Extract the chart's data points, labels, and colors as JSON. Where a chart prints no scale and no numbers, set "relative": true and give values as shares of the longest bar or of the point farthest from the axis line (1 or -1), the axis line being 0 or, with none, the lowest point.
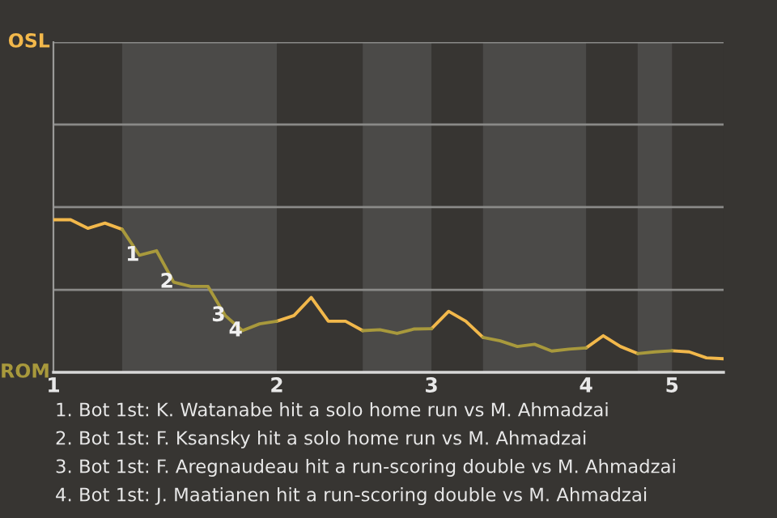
{
  "chart_data": {
    "type": "line",
    "relative": true,
    "categories": [
      "1",
      null,
      null,
      null,
      null,
      null,
      null,
      null,
      null,
      null,
      null,
      null,
      null,
      "2",
      null,
      null,
      null,
      null,
      null,
      null,
      null,
      null,
      "3",
      null,
      null,
      null,
      null,
      null,
      null,
      null,
      null,
      "4",
      null,
      null,
      null,
      null,
      "5",
      null,
      null,
      null
    ],
    "series": [
      {
        "name": "OSL",
        "color": "#f2b84b",
        "values": [
          1,
          1,
          0.944,
          0.978,
          0.937,
          null,
          null,
          null,
          null,
          null,
          null,
          null,
          null,
          0.335,
          0.372,
          0.491,
          0.335,
          0.335,
          0.273,
          null,
          null,
          null,
          0.286,
          0.4,
          0.335,
          0.229,
          null,
          null,
          null,
          null,
          null,
          0.16,
          0.24,
          0.169,
          0.123,
          null,
          0.141,
          0.134,
          0.095,
          0.089
        ]
      },
      {
        "name": "ROM",
        "color": "#a8993c",
        "values": [
          null,
          null,
          null,
          null,
          0.937,
          0.768,
          0.797,
          0.591,
          0.563,
          0.563,
          0.372,
          0.273,
          0.318,
          0.335,
          null,
          null,
          null,
          null,
          0.273,
          0.279,
          0.255,
          0.284,
          0.286,
          null,
          null,
          0.229,
          0.206,
          0.169,
          0.184,
          0.139,
          0.152,
          0.16,
          null,
          null,
          0.123,
          0.134,
          0.141,
          null,
          null,
          null
        ]
      }
    ],
    "ref_lines": [
      {
        "axis": "y",
        "value": 0.541,
        "color": "#8a8a88"
      },
      {
        "axis": "y",
        "value": 1.083,
        "color": "#8a8a88"
      },
      {
        "axis": "y",
        "value": 1.624,
        "color": "#8a8a88"
      },
      {
        "axis": "y",
        "value": 2.165,
        "color": "#8a8a88"
      }
    ],
    "annotations": [
      {
        "text": "1",
        "y": 0.768
      },
      {
        "text": "2",
        "y": 0.591
      },
      {
        "text": "3",
        "y": 0.372
      },
      {
        "text": "4",
        "y": 0.273
      },
      "1. Bot 1st: K. Watanabe hit a solo home run vs M. Ahmadzai",
      "2. Bot 1st: F. Ksansky hit a solo home run vs M. Ahmadzai",
      "3. Bot 1st: F. Aregnaudeau hit a run-scoring double vs M. Ahmadzai",
      "4. Bot 1st: J. Maatianen hit a run-scoring double vs M. Ahmadzai"
    ]
  }
}
